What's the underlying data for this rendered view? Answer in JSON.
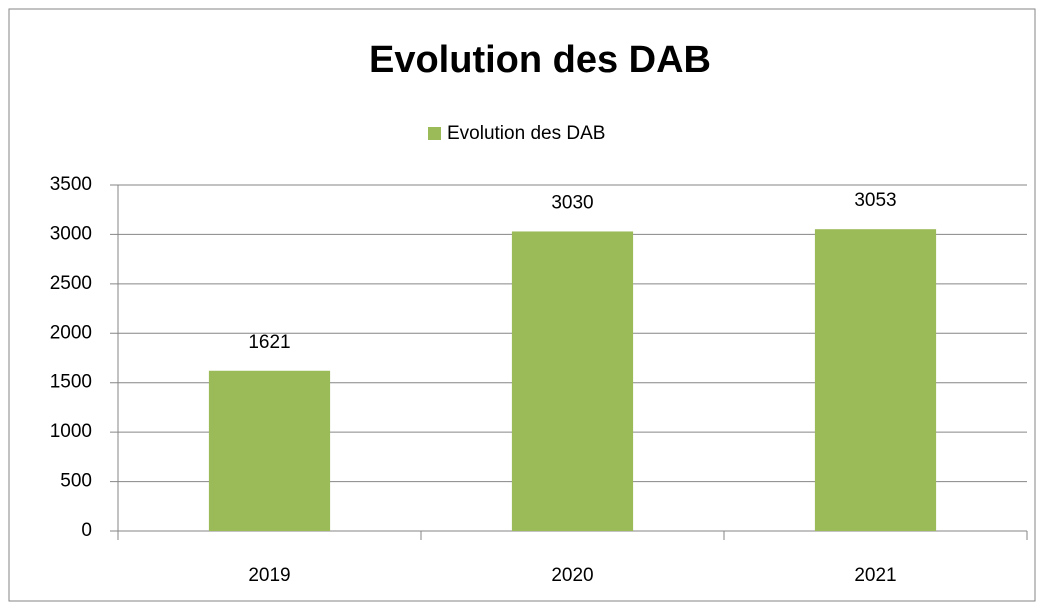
{
  "chart_data": {
    "type": "bar",
    "title": "Evolution des DAB",
    "categories": [
      "2019",
      "2020",
      "2021"
    ],
    "series": [
      {
        "name": "Evolution des DAB",
        "color": "#9bbb59",
        "values": [
          1621,
          3030,
          3053
        ]
      }
    ],
    "ylim": [
      0,
      3500
    ],
    "yticks": [
      0,
      500,
      1000,
      1500,
      2000,
      2500,
      3000,
      3500
    ],
    "grid": true,
    "legend": "top"
  }
}
